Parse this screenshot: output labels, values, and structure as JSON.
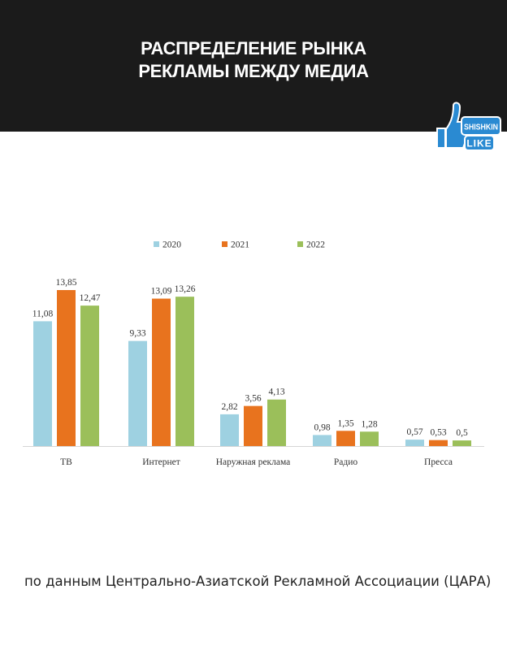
{
  "header": {
    "title_line1": "РАСПРЕДЕЛЕНИЕ РЫНКА",
    "title_line2": "РЕКЛАМЫ МЕЖДУ МЕДИА"
  },
  "logo": {
    "text_top": "SHISHKIN",
    "text_bottom": "LIKE",
    "icon": "thumbs-up-icon",
    "color": "#2a8ad2"
  },
  "chart_data": {
    "type": "bar",
    "categories": [
      "ТВ",
      "Интернет",
      "Наружная реклама",
      "Радио",
      "Пресса"
    ],
    "series": [
      {
        "name": "2020",
        "color": "#9ed1e1",
        "values": [
          11.08,
          9.33,
          2.82,
          0.98,
          0.57
        ],
        "labels": [
          "11,08",
          "9,33",
          "2,82",
          "0,98",
          "0,57"
        ]
      },
      {
        "name": "2021",
        "color": "#e8731e",
        "values": [
          13.85,
          13.09,
          3.56,
          1.35,
          0.53
        ],
        "labels": [
          "13,85",
          "13,09",
          "3,56",
          "1,35",
          "0,53"
        ]
      },
      {
        "name": "2022",
        "color": "#9bbf5a",
        "values": [
          12.47,
          13.26,
          4.13,
          1.28,
          0.5
        ],
        "labels": [
          "12,47",
          "13,26",
          "4,13",
          "1,28",
          "0,5"
        ]
      }
    ],
    "legend_position": "top",
    "ylim": [
      0,
      15
    ],
    "grid": false
  },
  "footer": {
    "source": "по данным Центрально-Азиатской Рекламной Ассоциации (ЦАРА)"
  }
}
